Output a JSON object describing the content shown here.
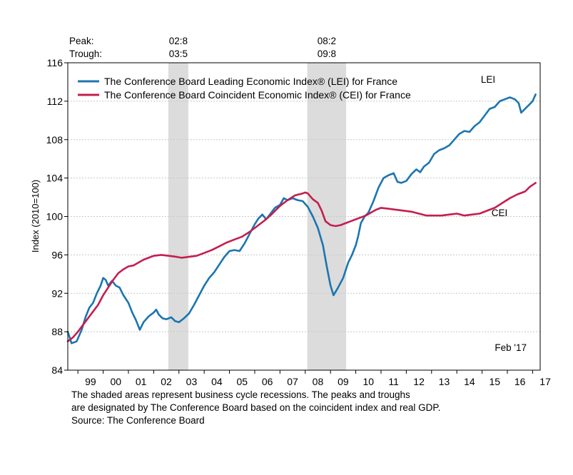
{
  "chart_data": {
    "type": "line",
    "ylabel": "Index (2010=100)",
    "ylim": [
      84,
      116
    ],
    "yticks": [
      84,
      88,
      92,
      96,
      100,
      104,
      108,
      112,
      116
    ],
    "xlim": [
      1998.6,
      2017.3
    ],
    "xtick_labels": [
      {
        "label": "99",
        "x": 1999.5
      },
      {
        "label": "00",
        "x": 2000.5
      },
      {
        "label": "01",
        "x": 2001.5
      },
      {
        "label": "02",
        "x": 2002.5
      },
      {
        "label": "03",
        "x": 2003.5
      },
      {
        "label": "04",
        "x": 2004.5
      },
      {
        "label": "05",
        "x": 2005.5
      },
      {
        "label": "06",
        "x": 2006.5
      },
      {
        "label": "07",
        "x": 2007.5
      },
      {
        "label": "08",
        "x": 2008.5
      },
      {
        "label": "09",
        "x": 2009.5
      },
      {
        "label": "10",
        "x": 2010.5
      },
      {
        "label": "11",
        "x": 2011.5
      },
      {
        "label": "12",
        "x": 2012.5
      },
      {
        "label": "13",
        "x": 2013.5
      },
      {
        "label": "14",
        "x": 2014.5
      },
      {
        "label": "15",
        "x": 2015.5
      },
      {
        "label": "16",
        "x": 2016.5
      },
      {
        "label": "17",
        "x": 2017.5
      }
    ],
    "grid": true,
    "legend_position": "top-left",
    "recession_header": {
      "peak_label": "Peak:",
      "trough_label": "Trough:"
    },
    "recessions": [
      {
        "start": 2002.58,
        "end": 2003.37,
        "peak": "02:8",
        "trough": "03:5"
      },
      {
        "start": 2008.08,
        "end": 2009.62,
        "peak": "08:2",
        "trough": "09:8"
      }
    ],
    "annotations": {
      "lei": "LEI",
      "cei": "CEI",
      "date": "Feb '17"
    },
    "series": [
      {
        "name": "The Conference Board Leading Economic Index® (LEI) for France",
        "short": "LEI",
        "color": "#1b75b0",
        "points": [
          [
            1998.6,
            88.0
          ],
          [
            1998.75,
            86.8
          ],
          [
            1998.95,
            87.0
          ],
          [
            1999.15,
            88.2
          ],
          [
            1999.3,
            89.5
          ],
          [
            1999.45,
            90.5
          ],
          [
            1999.6,
            91.0
          ],
          [
            1999.75,
            92.0
          ],
          [
            1999.9,
            92.8
          ],
          [
            2000.0,
            93.6
          ],
          [
            2000.1,
            93.4
          ],
          [
            2000.2,
            92.8
          ],
          [
            2000.35,
            93.3
          ],
          [
            2000.5,
            92.8
          ],
          [
            2000.65,
            92.6
          ],
          [
            2000.8,
            91.8
          ],
          [
            2001.0,
            91.0
          ],
          [
            2001.15,
            90.0
          ],
          [
            2001.3,
            89.2
          ],
          [
            2001.45,
            88.2
          ],
          [
            2001.6,
            89.0
          ],
          [
            2001.8,
            89.6
          ],
          [
            2002.0,
            90.0
          ],
          [
            2002.1,
            90.3
          ],
          [
            2002.2,
            89.8
          ],
          [
            2002.35,
            89.4
          ],
          [
            2002.5,
            89.3
          ],
          [
            2002.7,
            89.5
          ],
          [
            2002.85,
            89.1
          ],
          [
            2003.0,
            89.0
          ],
          [
            2003.2,
            89.4
          ],
          [
            2003.4,
            89.9
          ],
          [
            2003.6,
            90.8
          ],
          [
            2003.8,
            91.8
          ],
          [
            2004.0,
            92.8
          ],
          [
            2004.2,
            93.6
          ],
          [
            2004.4,
            94.2
          ],
          [
            2004.6,
            95.0
          ],
          [
            2004.8,
            95.8
          ],
          [
            2005.0,
            96.4
          ],
          [
            2005.2,
            96.5
          ],
          [
            2005.4,
            96.4
          ],
          [
            2005.6,
            97.2
          ],
          [
            2005.8,
            98.2
          ],
          [
            2006.0,
            99.2
          ],
          [
            2006.15,
            99.8
          ],
          [
            2006.3,
            100.2
          ],
          [
            2006.45,
            99.7
          ],
          [
            2006.6,
            100.2
          ],
          [
            2006.8,
            100.9
          ],
          [
            2007.0,
            101.2
          ],
          [
            2007.15,
            101.9
          ],
          [
            2007.3,
            101.7
          ],
          [
            2007.5,
            101.9
          ],
          [
            2007.7,
            101.7
          ],
          [
            2007.9,
            101.6
          ],
          [
            2008.1,
            101.0
          ],
          [
            2008.3,
            100.0
          ],
          [
            2008.5,
            98.8
          ],
          [
            2008.7,
            97.0
          ],
          [
            2008.85,
            94.8
          ],
          [
            2009.0,
            92.8
          ],
          [
            2009.12,
            91.8
          ],
          [
            2009.3,
            92.6
          ],
          [
            2009.5,
            93.6
          ],
          [
            2009.7,
            95.2
          ],
          [
            2009.85,
            96.0
          ],
          [
            2010.0,
            97.0
          ],
          [
            2010.1,
            98.0
          ],
          [
            2010.2,
            99.3
          ],
          [
            2010.35,
            100.0
          ],
          [
            2010.5,
            100.4
          ],
          [
            2010.7,
            101.6
          ],
          [
            2010.9,
            103.0
          ],
          [
            2011.1,
            104.0
          ],
          [
            2011.3,
            104.3
          ],
          [
            2011.5,
            104.5
          ],
          [
            2011.65,
            103.6
          ],
          [
            2011.8,
            103.5
          ],
          [
            2012.0,
            103.7
          ],
          [
            2012.2,
            104.4
          ],
          [
            2012.4,
            104.9
          ],
          [
            2012.55,
            104.6
          ],
          [
            2012.7,
            105.2
          ],
          [
            2012.9,
            105.6
          ],
          [
            2013.1,
            106.5
          ],
          [
            2013.3,
            106.9
          ],
          [
            2013.5,
            107.1
          ],
          [
            2013.7,
            107.4
          ],
          [
            2013.9,
            108.0
          ],
          [
            2014.1,
            108.6
          ],
          [
            2014.3,
            108.9
          ],
          [
            2014.5,
            108.8
          ],
          [
            2014.7,
            109.4
          ],
          [
            2014.9,
            109.8
          ],
          [
            2015.1,
            110.5
          ],
          [
            2015.3,
            111.2
          ],
          [
            2015.5,
            111.4
          ],
          [
            2015.7,
            112.0
          ],
          [
            2015.9,
            112.2
          ],
          [
            2016.1,
            112.4
          ],
          [
            2016.3,
            112.2
          ],
          [
            2016.45,
            111.8
          ],
          [
            2016.55,
            110.8
          ],
          [
            2016.7,
            111.2
          ],
          [
            2016.85,
            111.6
          ],
          [
            2017.0,
            112.0
          ],
          [
            2017.12,
            112.7
          ]
        ]
      },
      {
        "name": "The Conference Board Coincident Economic Index® (CEI) for France",
        "short": "CEI",
        "color": "#c41e4f",
        "points": [
          [
            1998.6,
            87.0
          ],
          [
            1998.8,
            87.4
          ],
          [
            1999.0,
            88.0
          ],
          [
            1999.2,
            88.7
          ],
          [
            1999.4,
            89.4
          ],
          [
            1999.6,
            90.1
          ],
          [
            1999.8,
            90.8
          ],
          [
            2000.0,
            91.8
          ],
          [
            2000.2,
            92.6
          ],
          [
            2000.4,
            93.4
          ],
          [
            2000.6,
            94.1
          ],
          [
            2000.8,
            94.5
          ],
          [
            2001.0,
            94.8
          ],
          [
            2001.2,
            94.9
          ],
          [
            2001.4,
            95.2
          ],
          [
            2001.6,
            95.5
          ],
          [
            2001.8,
            95.7
          ],
          [
            2002.0,
            95.9
          ],
          [
            2002.3,
            96.0
          ],
          [
            2002.6,
            95.9
          ],
          [
            2002.9,
            95.8
          ],
          [
            2003.1,
            95.7
          ],
          [
            2003.4,
            95.8
          ],
          [
            2003.7,
            95.9
          ],
          [
            2004.0,
            96.2
          ],
          [
            2004.3,
            96.5
          ],
          [
            2004.6,
            96.9
          ],
          [
            2004.9,
            97.3
          ],
          [
            2005.2,
            97.6
          ],
          [
            2005.5,
            97.9
          ],
          [
            2005.8,
            98.4
          ],
          [
            2006.1,
            99.0
          ],
          [
            2006.4,
            99.6
          ],
          [
            2006.7,
            100.3
          ],
          [
            2007.0,
            101.1
          ],
          [
            2007.3,
            101.7
          ],
          [
            2007.6,
            102.2
          ],
          [
            2007.9,
            102.4
          ],
          [
            2008.0,
            102.5
          ],
          [
            2008.1,
            102.4
          ],
          [
            2008.3,
            101.8
          ],
          [
            2008.5,
            101.4
          ],
          [
            2008.65,
            100.6
          ],
          [
            2008.8,
            99.5
          ],
          [
            2009.0,
            99.1
          ],
          [
            2009.2,
            99.0
          ],
          [
            2009.4,
            99.1
          ],
          [
            2009.6,
            99.3
          ],
          [
            2009.8,
            99.5
          ],
          [
            2010.0,
            99.7
          ],
          [
            2010.2,
            99.9
          ],
          [
            2010.4,
            100.1
          ],
          [
            2010.6,
            100.4
          ],
          [
            2010.8,
            100.7
          ],
          [
            2011.0,
            100.9
          ],
          [
            2011.3,
            100.8
          ],
          [
            2011.6,
            100.7
          ],
          [
            2011.9,
            100.6
          ],
          [
            2012.2,
            100.5
          ],
          [
            2012.5,
            100.3
          ],
          [
            2012.8,
            100.1
          ],
          [
            2013.1,
            100.1
          ],
          [
            2013.4,
            100.1
          ],
          [
            2013.7,
            100.2
          ],
          [
            2014.0,
            100.3
          ],
          [
            2014.3,
            100.1
          ],
          [
            2014.6,
            100.2
          ],
          [
            2014.9,
            100.3
          ],
          [
            2015.2,
            100.6
          ],
          [
            2015.5,
            100.9
          ],
          [
            2015.8,
            101.4
          ],
          [
            2016.1,
            101.9
          ],
          [
            2016.4,
            102.3
          ],
          [
            2016.7,
            102.6
          ],
          [
            2016.9,
            103.1
          ],
          [
            2017.12,
            103.5
          ]
        ]
      }
    ]
  },
  "notes": [
    "The shaded areas represent business cycle recessions. The peaks and troughs",
    "are designated by The Conference Board based on the coincident index and real GDP.",
    "Source: The Conference Board"
  ]
}
